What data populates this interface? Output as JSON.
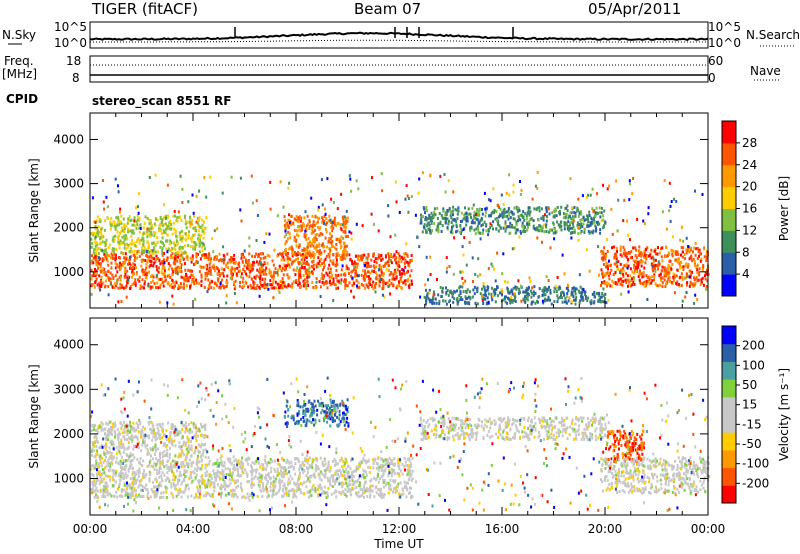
{
  "header": {
    "radar": "TIGER (fitACF)",
    "beam": "Beam 07",
    "date": "05/Apr/2011"
  },
  "top_panels": {
    "nsky_label": "N.Sky",
    "nsky_tick_top": "10^5",
    "nsky_tick_bottom": "10^0",
    "nsearch_label": "N.Search",
    "right_tick_top": "10^5",
    "right_tick_bottom": "10^0",
    "freq_label": "Freq.",
    "freq_unit": "[MHz]",
    "freq_ticks": [
      "18",
      "8"
    ],
    "nave_ticks": [
      "60",
      "0"
    ],
    "nave_label": "Nave",
    "cpid_label": "CPID",
    "cpid_value": "stereo_scan 8551 RF"
  },
  "colors": {
    "power_scale": [
      "#0000ff",
      "#2a5fa8",
      "#3f8f5c",
      "#7fc040",
      "#ffcc00",
      "#ff9900",
      "#ff5500",
      "#ff0000"
    ],
    "velocity_scale": [
      "#ff0000",
      "#ff5500",
      "#ff9900",
      "#ffcc00",
      "#c8c8c8",
      "#c8c8c8",
      "#7fd03a",
      "#4aa0a0",
      "#2a5fa8",
      "#0000ff"
    ]
  },
  "chart_data": [
    {
      "type": "heatmap",
      "name": "power",
      "ylabel": "Slant Range [km]",
      "ylim": [
        180,
        4600
      ],
      "yticks": [
        "1000",
        "2000",
        "3000",
        "4000"
      ],
      "xlim": [
        0,
        24
      ],
      "colorbar": {
        "label": "Power [dB]",
        "ticks": [
          "4",
          "8",
          "12",
          "16",
          "20",
          "24",
          "28"
        ],
        "range": [
          0,
          32
        ]
      },
      "echo_regions": [
        {
          "start": 0,
          "end": 12.5,
          "range_from": 650,
          "range_to": 1450,
          "value": 26
        },
        {
          "start": 0,
          "end": 4.5,
          "range_from": 1450,
          "range_to": 2300,
          "value": 16
        },
        {
          "start": 7.5,
          "end": 10,
          "range_from": 1400,
          "range_to": 2300,
          "value": 24
        },
        {
          "start": 12.8,
          "end": 20,
          "range_from": 1900,
          "range_to": 2500,
          "value": 10
        },
        {
          "start": 19.8,
          "end": 24,
          "range_from": 700,
          "range_to": 1600,
          "value": 26
        },
        {
          "start": 13,
          "end": 20,
          "range_from": 300,
          "range_to": 700,
          "value": 8
        }
      ]
    },
    {
      "type": "heatmap",
      "name": "velocity",
      "ylabel": "Slant Range [km]",
      "ylim": [
        180,
        4600
      ],
      "yticks": [
        "1000",
        "2000",
        "3000",
        "4000"
      ],
      "xlabel": "Time UT",
      "xticks": [
        "00:00",
        "04:00",
        "08:00",
        "12:00",
        "16:00",
        "20:00",
        "00:00"
      ],
      "xlim": [
        0,
        24
      ],
      "colorbar": {
        "label": "Velocity [m s⁻¹]",
        "ticks": [
          "200",
          "100",
          "50",
          "15",
          "-15",
          "-50",
          "-100",
          "-200"
        ],
        "range": [
          -250,
          250
        ]
      },
      "echo_regions": [
        {
          "start": 0,
          "end": 12.5,
          "range_from": 600,
          "range_to": 1500,
          "value": 0
        },
        {
          "start": 0,
          "end": 4.5,
          "range_from": 1500,
          "range_to": 2300,
          "value": 0
        },
        {
          "start": 7.5,
          "end": 10,
          "range_from": 2200,
          "range_to": 2800,
          "value": 150
        },
        {
          "start": 12.8,
          "end": 20,
          "range_from": 1900,
          "range_to": 2400,
          "value": 0
        },
        {
          "start": 20,
          "end": 21.5,
          "range_from": 1400,
          "range_to": 2100,
          "value": -180
        },
        {
          "start": 19.8,
          "end": 24,
          "range_from": 700,
          "range_to": 1500,
          "value": 0
        }
      ]
    }
  ]
}
